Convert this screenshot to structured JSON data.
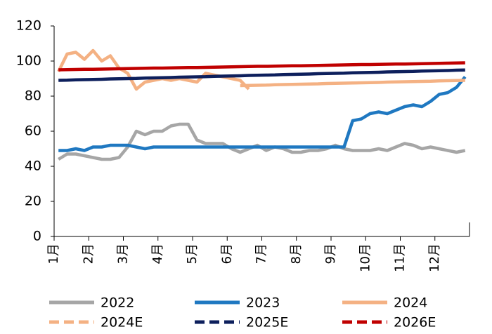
{
  "chart_data": {
    "type": "line",
    "categories": [
      "1月",
      null,
      null,
      null,
      "2月",
      null,
      null,
      null,
      "3月",
      null,
      null,
      null,
      "4月",
      null,
      null,
      null,
      "5月",
      null,
      null,
      null,
      "6月",
      null,
      null,
      null,
      "7月",
      null,
      null,
      null,
      "8月",
      null,
      null,
      null,
      "9月",
      null,
      null,
      null,
      "10月",
      null,
      null,
      null,
      "11月",
      null,
      null,
      null,
      "12月",
      null,
      null,
      null
    ],
    "ylim": [
      0,
      120
    ],
    "yticks": [
      0,
      20,
      40,
      60,
      80,
      100,
      120
    ],
    "grid": false,
    "legend": "bottom",
    "series": [
      {
        "name": "2022",
        "color": "#a6a6a6",
        "dashed": false,
        "values": [
          44,
          47,
          47,
          46,
          45,
          44,
          44,
          45,
          51,
          60,
          58,
          60,
          60,
          63,
          64,
          64,
          55,
          53,
          53,
          53,
          50,
          48,
          50,
          52,
          49,
          51,
          50,
          48,
          48,
          49,
          49,
          50,
          52,
          50,
          49,
          49,
          49,
          50,
          49,
          51,
          53,
          52,
          50,
          51,
          50,
          49,
          48,
          49
        ]
      },
      {
        "name": "2023",
        "color": "#1f78c1",
        "dashed": false,
        "values": [
          49,
          49,
          50,
          49,
          51,
          51,
          52,
          52,
          52,
          51,
          50,
          51,
          51,
          51,
          51,
          51,
          51,
          51,
          51,
          51,
          51,
          51,
          51,
          51,
          51,
          51,
          51,
          51,
          51,
          51,
          51,
          51,
          51,
          51,
          66,
          67,
          70,
          71,
          70,
          72,
          74,
          75,
          74,
          77,
          81,
          82,
          85,
          91
        ]
      },
      {
        "name": "2024",
        "color": "#f4b183",
        "dashed": false,
        "values": [
          94,
          104,
          105,
          101,
          106,
          100,
          103,
          96,
          93,
          84,
          88,
          89,
          90,
          89,
          90,
          89,
          88,
          93,
          92,
          91,
          90,
          89,
          84,
          null,
          null,
          null,
          null,
          null,
          null,
          null,
          null,
          null,
          null,
          null,
          null,
          null,
          null,
          null,
          null,
          null,
          null,
          null,
          null,
          null,
          null,
          null,
          null,
          null
        ]
      },
      {
        "name": "2024E",
        "color": "#f4b183",
        "dashed": true,
        "values": [
          null,
          null,
          null,
          null,
          null,
          null,
          null,
          null,
          null,
          null,
          null,
          null,
          null,
          null,
          null,
          null,
          null,
          null,
          null,
          null,
          null,
          86,
          86.1,
          86.2,
          86.3,
          86.5,
          86.6,
          86.7,
          86.8,
          86.9,
          87,
          87.2,
          87.3,
          87.4,
          87.5,
          87.6,
          87.7,
          87.8,
          88,
          88.1,
          88.2,
          88.3,
          88.4,
          88.5,
          88.7,
          88.8,
          88.9,
          89
        ]
      },
      {
        "name": "2025E",
        "color": "#0d1f5c",
        "dashed": true,
        "values": [
          89,
          89.1,
          89.3,
          89.4,
          89.5,
          89.6,
          89.8,
          89.9,
          90,
          90.1,
          90.3,
          90.4,
          90.5,
          90.6,
          90.8,
          90.9,
          91,
          91.1,
          91.3,
          91.4,
          91.5,
          91.6,
          91.8,
          91.9,
          92,
          92.1,
          92.3,
          92.4,
          92.5,
          92.6,
          92.8,
          92.9,
          93,
          93.1,
          93.3,
          93.4,
          93.5,
          93.6,
          93.8,
          93.9,
          94,
          94.1,
          94.3,
          94.4,
          94.5,
          94.6,
          94.8,
          94.9
        ]
      },
      {
        "name": "2026E",
        "color": "#c00000",
        "dashed": true,
        "values": [
          95,
          95.1,
          95.2,
          95.3,
          95.3,
          95.4,
          95.5,
          95.6,
          95.7,
          95.8,
          95.9,
          96,
          96,
          96.1,
          96.2,
          96.3,
          96.3,
          96.4,
          96.5,
          96.6,
          96.7,
          96.8,
          96.9,
          97,
          97,
          97.1,
          97.2,
          97.3,
          97.3,
          97.4,
          97.5,
          97.6,
          97.7,
          97.8,
          97.9,
          98,
          98,
          98.1,
          98.2,
          98.3,
          98.3,
          98.4,
          98.5,
          98.6,
          98.7,
          98.8,
          98.9,
          99
        ]
      }
    ]
  }
}
